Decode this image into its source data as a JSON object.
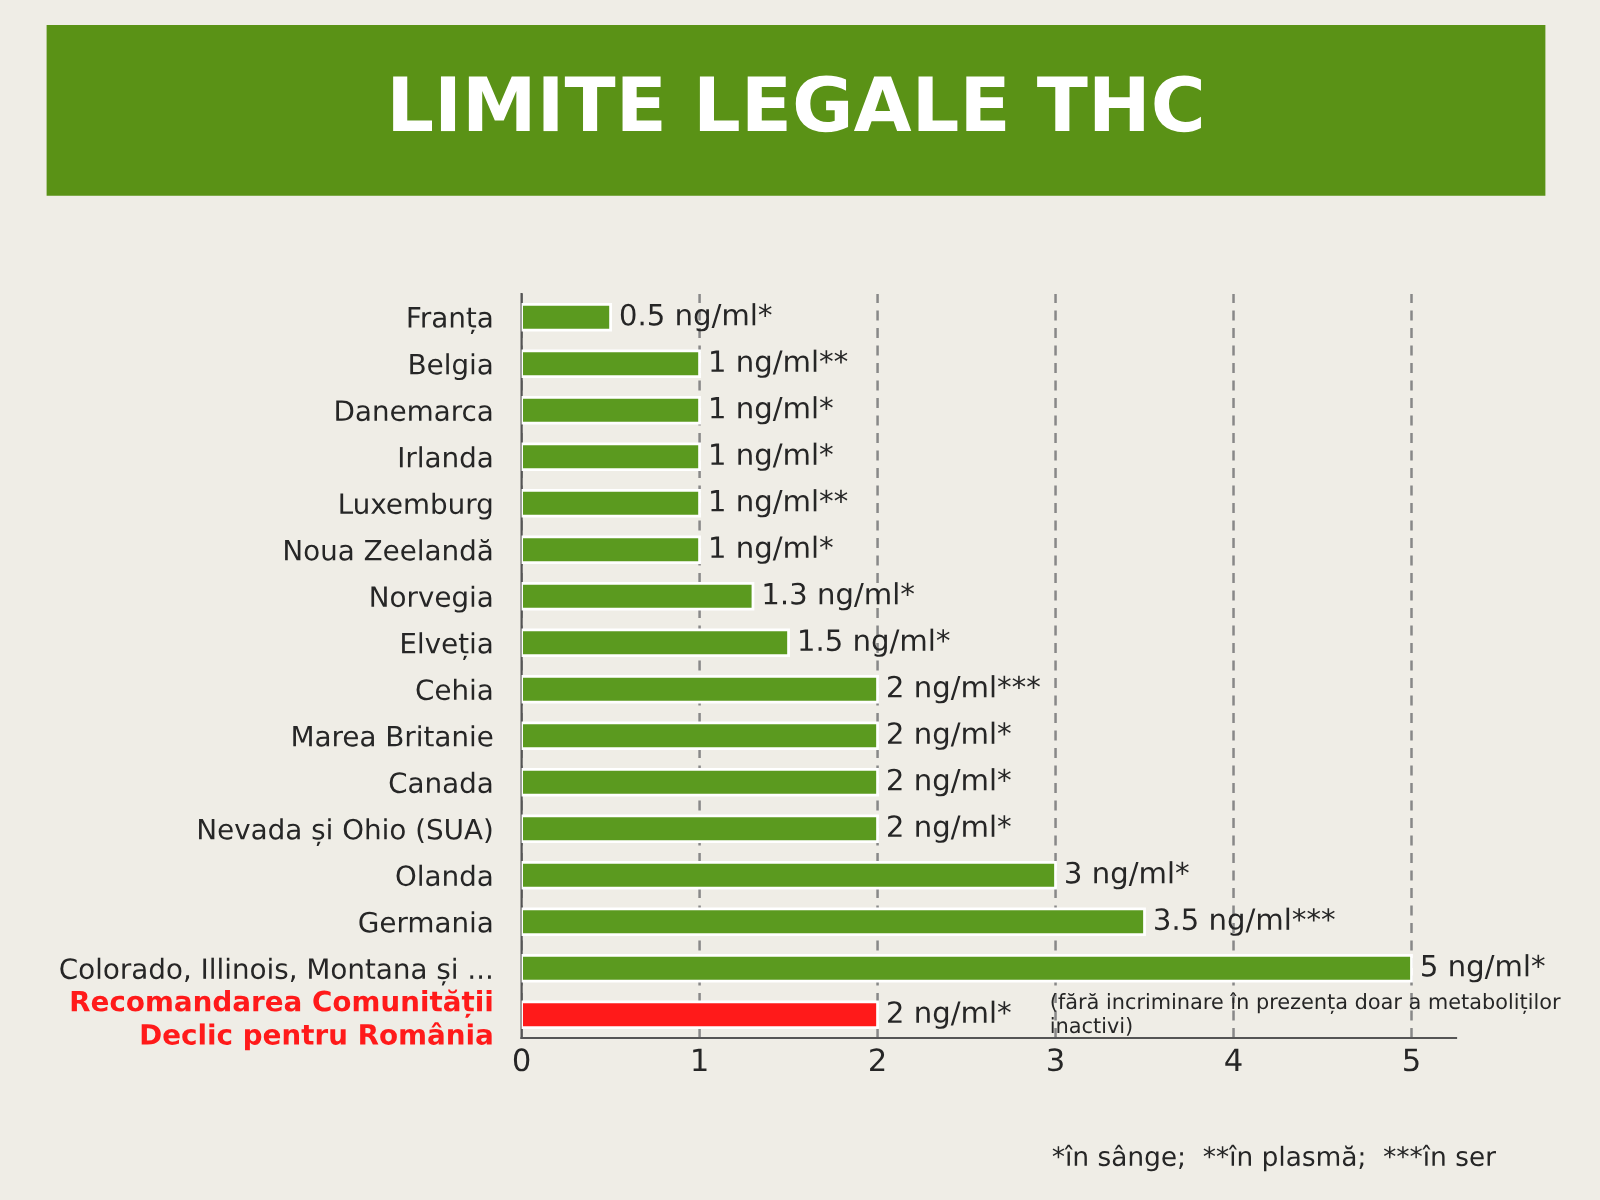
{
  "chart_data": {
    "type": "bar",
    "orientation": "horizontal",
    "title": "LIMITE LEGALE THC",
    "categories": [
      "Franța",
      "Belgia",
      "Danemarca",
      "Irlanda",
      "Luxemburg",
      "Noua Zeelandă",
      "Norvegia",
      "Elveția",
      "Cehia",
      "Marea Britanie",
      "Canada",
      "Nevada și Ohio (SUA)",
      "Olanda",
      "Germania",
      "Colorado, Illinois, Montana și ...",
      "Recomandarea Comunității\nDeclic pentru România"
    ],
    "values": [
      0.5,
      1,
      1,
      1,
      1,
      1,
      1.3,
      1.5,
      2,
      2,
      2,
      2,
      3,
      3.5,
      5,
      2
    ],
    "value_labels": [
      "0.5 ng/ml*",
      "1 ng/ml**",
      "1 ng/ml*",
      "1 ng/ml*",
      "1 ng/ml**",
      "1 ng/ml*",
      "1.3 ng/ml*",
      "1.5 ng/ml*",
      "2 ng/ml***",
      "2 ng/ml*",
      "2 ng/ml*",
      "2 ng/ml*",
      "3 ng/ml*",
      "3.5 ng/ml***",
      "5 ng/ml*",
      "2 ng/ml*"
    ],
    "colors": [
      "#5b9a1f",
      "#5b9a1f",
      "#5b9a1f",
      "#5b9a1f",
      "#5b9a1f",
      "#5b9a1f",
      "#5b9a1f",
      "#5b9a1f",
      "#5b9a1f",
      "#5b9a1f",
      "#5b9a1f",
      "#5b9a1f",
      "#5b9a1f",
      "#5b9a1f",
      "#5b9a1f",
      "#ff1a1a"
    ],
    "xlim": [
      0,
      5.25
    ],
    "xticks": [
      0,
      1,
      2,
      3,
      4,
      5
    ],
    "grid": "x",
    "legend": false,
    "annotations": [
      "(fără incriminare în prezența doar a metaboliților inactivi)",
      "*în sânge;  **în plasmă;  ***în ser"
    ]
  }
}
